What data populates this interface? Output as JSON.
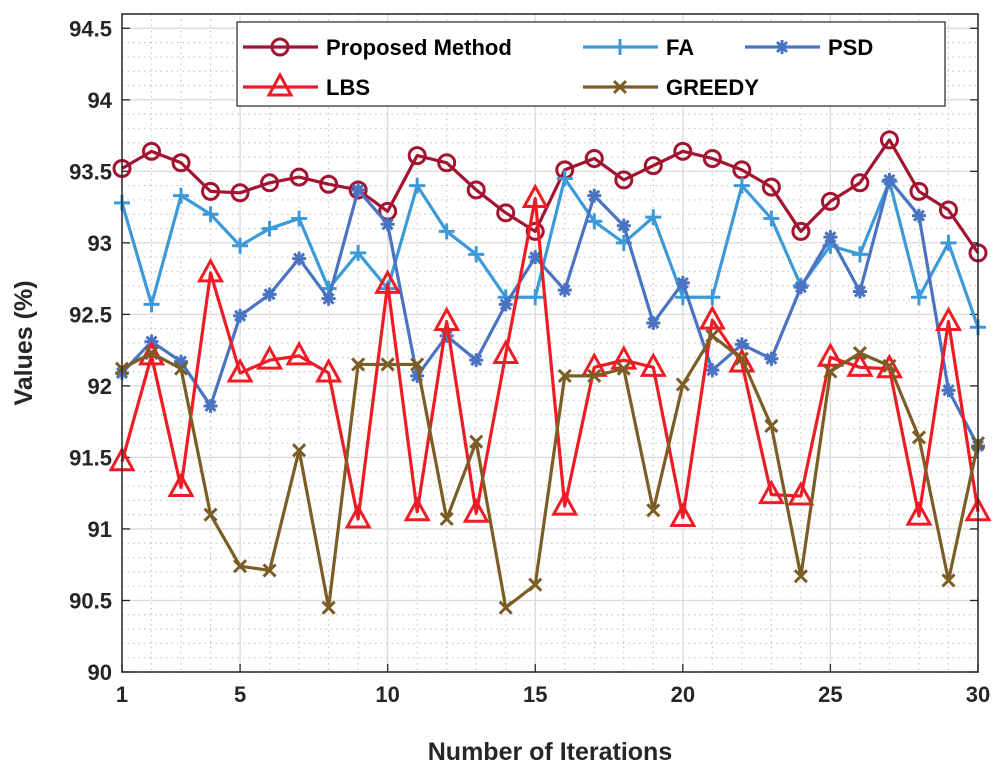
{
  "chart_data": {
    "type": "line",
    "title": "",
    "xlabel": "Number of Iterations",
    "ylabel": "Values (%)",
    "xlim": [
      1,
      30
    ],
    "ylim": [
      90,
      94.6
    ],
    "xticks": [
      1,
      5,
      10,
      15,
      20,
      25,
      30
    ],
    "yticks": [
      90,
      90.5,
      91,
      91.5,
      92,
      92.5,
      93,
      93.5,
      94,
      94.5
    ],
    "grid": true,
    "minor_grid": true,
    "legend_placement": "top",
    "x": [
      1,
      2,
      3,
      4,
      5,
      6,
      7,
      8,
      9,
      10,
      11,
      12,
      13,
      14,
      15,
      16,
      17,
      18,
      19,
      20,
      21,
      22,
      23,
      24,
      25,
      26,
      27,
      28,
      29,
      30
    ],
    "series": [
      {
        "name": "Proposed Method",
        "color": "#A2142F",
        "marker": "circle",
        "values": [
          93.52,
          93.64,
          93.56,
          93.36,
          93.35,
          93.42,
          93.46,
          93.41,
          93.37,
          93.22,
          93.61,
          93.56,
          93.37,
          93.21,
          93.08,
          93.51,
          93.59,
          93.44,
          93.54,
          93.64,
          93.59,
          93.51,
          93.39,
          93.08,
          93.29,
          93.42,
          93.72,
          93.36,
          93.23,
          92.93
        ]
      },
      {
        "name": "FA",
        "color": "#3D9AD9",
        "marker": "plus",
        "values": [
          93.28,
          92.57,
          93.33,
          93.2,
          92.98,
          93.1,
          93.17,
          92.68,
          92.93,
          92.68,
          93.4,
          93.08,
          92.92,
          92.62,
          92.62,
          93.45,
          93.15,
          93.0,
          93.18,
          92.62,
          92.62,
          93.4,
          93.17,
          92.7,
          92.98,
          92.92,
          93.43,
          92.62,
          93.0,
          92.41
        ]
      },
      {
        "name": "PSD",
        "color": "#4A74C2",
        "marker": "asterisk",
        "values": [
          92.09,
          92.31,
          92.17,
          91.86,
          92.49,
          92.64,
          92.89,
          92.61,
          93.37,
          93.13,
          92.07,
          92.35,
          92.18,
          92.57,
          92.9,
          92.67,
          93.33,
          93.12,
          92.44,
          92.72,
          92.11,
          92.29,
          92.19,
          92.69,
          93.04,
          92.66,
          93.44,
          93.19,
          91.97,
          91.58
        ]
      },
      {
        "name": "LBS",
        "color": "#EE1C25",
        "marker": "triangle",
        "values": [
          91.47,
          92.21,
          91.29,
          92.79,
          92.09,
          92.18,
          92.21,
          92.09,
          91.07,
          92.71,
          91.12,
          92.45,
          91.11,
          92.22,
          93.31,
          91.16,
          92.13,
          92.18,
          92.13,
          91.08,
          92.46,
          92.16,
          91.24,
          91.23,
          92.2,
          92.13,
          92.12,
          91.09,
          92.45,
          91.12
        ]
      },
      {
        "name": "GREEDY",
        "color": "#7B5E25",
        "marker": "x",
        "values": [
          92.12,
          92.23,
          92.12,
          91.1,
          90.74,
          90.71,
          91.55,
          90.45,
          92.15,
          92.15,
          92.15,
          91.07,
          91.61,
          90.45,
          90.61,
          92.07,
          92.07,
          92.12,
          91.13,
          92.01,
          92.35,
          92.19,
          91.72,
          90.67,
          92.1,
          92.23,
          92.14,
          91.64,
          90.64,
          91.6
        ]
      }
    ]
  }
}
